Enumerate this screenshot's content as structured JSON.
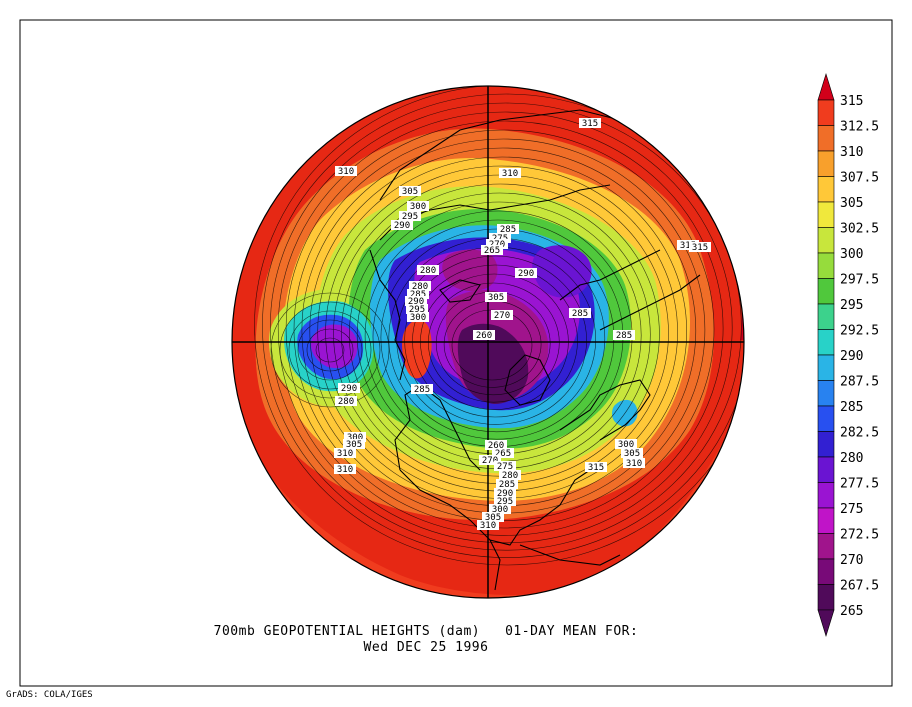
{
  "map": {
    "title": "700mb GEOPOTENTIAL HEIGHTS (dam)   01-DAY MEAN FOR:",
    "date": "Wed DEC 25 1996",
    "credit": "GrADS: COLA/IGES",
    "projection": "north-polar-stereographic",
    "variable": "700mb geopotential height",
    "units": "dam"
  },
  "colorbar": {
    "levels": [
      "315",
      "312.5",
      "310",
      "307.5",
      "305",
      "302.5",
      "300",
      "297.5",
      "295",
      "292.5",
      "290",
      "287.5",
      "285",
      "282.5",
      "280",
      "277.5",
      "275",
      "272.5",
      "270",
      "267.5",
      "265"
    ],
    "colors": [
      "#d2001a",
      "#f03c1e",
      "#f06e28",
      "#f8a02c",
      "#ffc838",
      "#f0e83c",
      "#c8e63c",
      "#96dc3c",
      "#50c83c",
      "#3cd28c",
      "#28d2c8",
      "#2ab4e6",
      "#2882f0",
      "#2850f0",
      "#3220d2",
      "#6a14d2",
      "#9a14d2",
      "#c014c8",
      "#a0148c",
      "#780a78",
      "#500a5a"
    ]
  },
  "contour_labels": [
    "315",
    "310",
    "310",
    "305",
    "300",
    "295",
    "290",
    "285",
    "275",
    "270",
    "265",
    "280",
    "290",
    "315",
    "315",
    "280",
    "285",
    "290",
    "295",
    "300",
    "305",
    "270",
    "285",
    "260",
    "285",
    "290",
    "280",
    "285",
    "310",
    "300",
    "305",
    "310",
    "315",
    "260",
    "265",
    "270",
    "275",
    "280",
    "285",
    "290",
    "295",
    "300",
    "305",
    "310",
    "300",
    "305",
    "310",
    "315"
  ]
}
